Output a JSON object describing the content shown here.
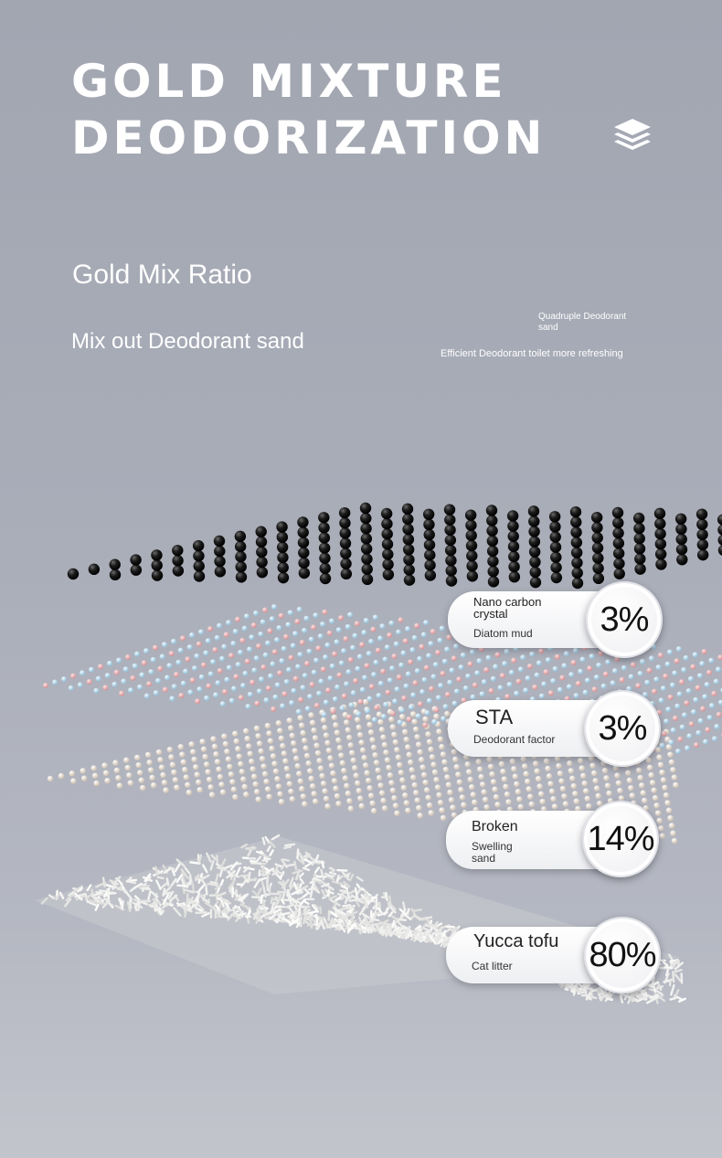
{
  "headline": {
    "line1": "GOLD MIXTURE",
    "line2": "DEODORIZATION"
  },
  "icons": {
    "layers": "layers-stack-icon"
  },
  "ratio": {
    "title": "Gold Mix Ratio",
    "subtitle": "Mix out Deodorant sand",
    "small_title": "Quadruple Deodorant sand",
    "small_desc": "Efficient Deodorant toilet more refreshing"
  },
  "components": [
    {
      "line1": "Nano carbon crystal",
      "line2": "Diatom mud",
      "percent": "3%"
    },
    {
      "line1": "STA",
      "line2": "Deodorant factor",
      "percent": "3%"
    },
    {
      "line1": "Broken",
      "line2": "Swelling sand",
      "percent": "14%"
    },
    {
      "line1": "Yucca tofu",
      "line2": "Cat litter",
      "percent": "80%"
    }
  ],
  "colors": {
    "background": "#a9adb8",
    "carbon": "#151515",
    "pink": "#e3a4a6",
    "blue": "#a8cde2",
    "cream": "#efe6dc",
    "litter": "#eeeeee"
  }
}
